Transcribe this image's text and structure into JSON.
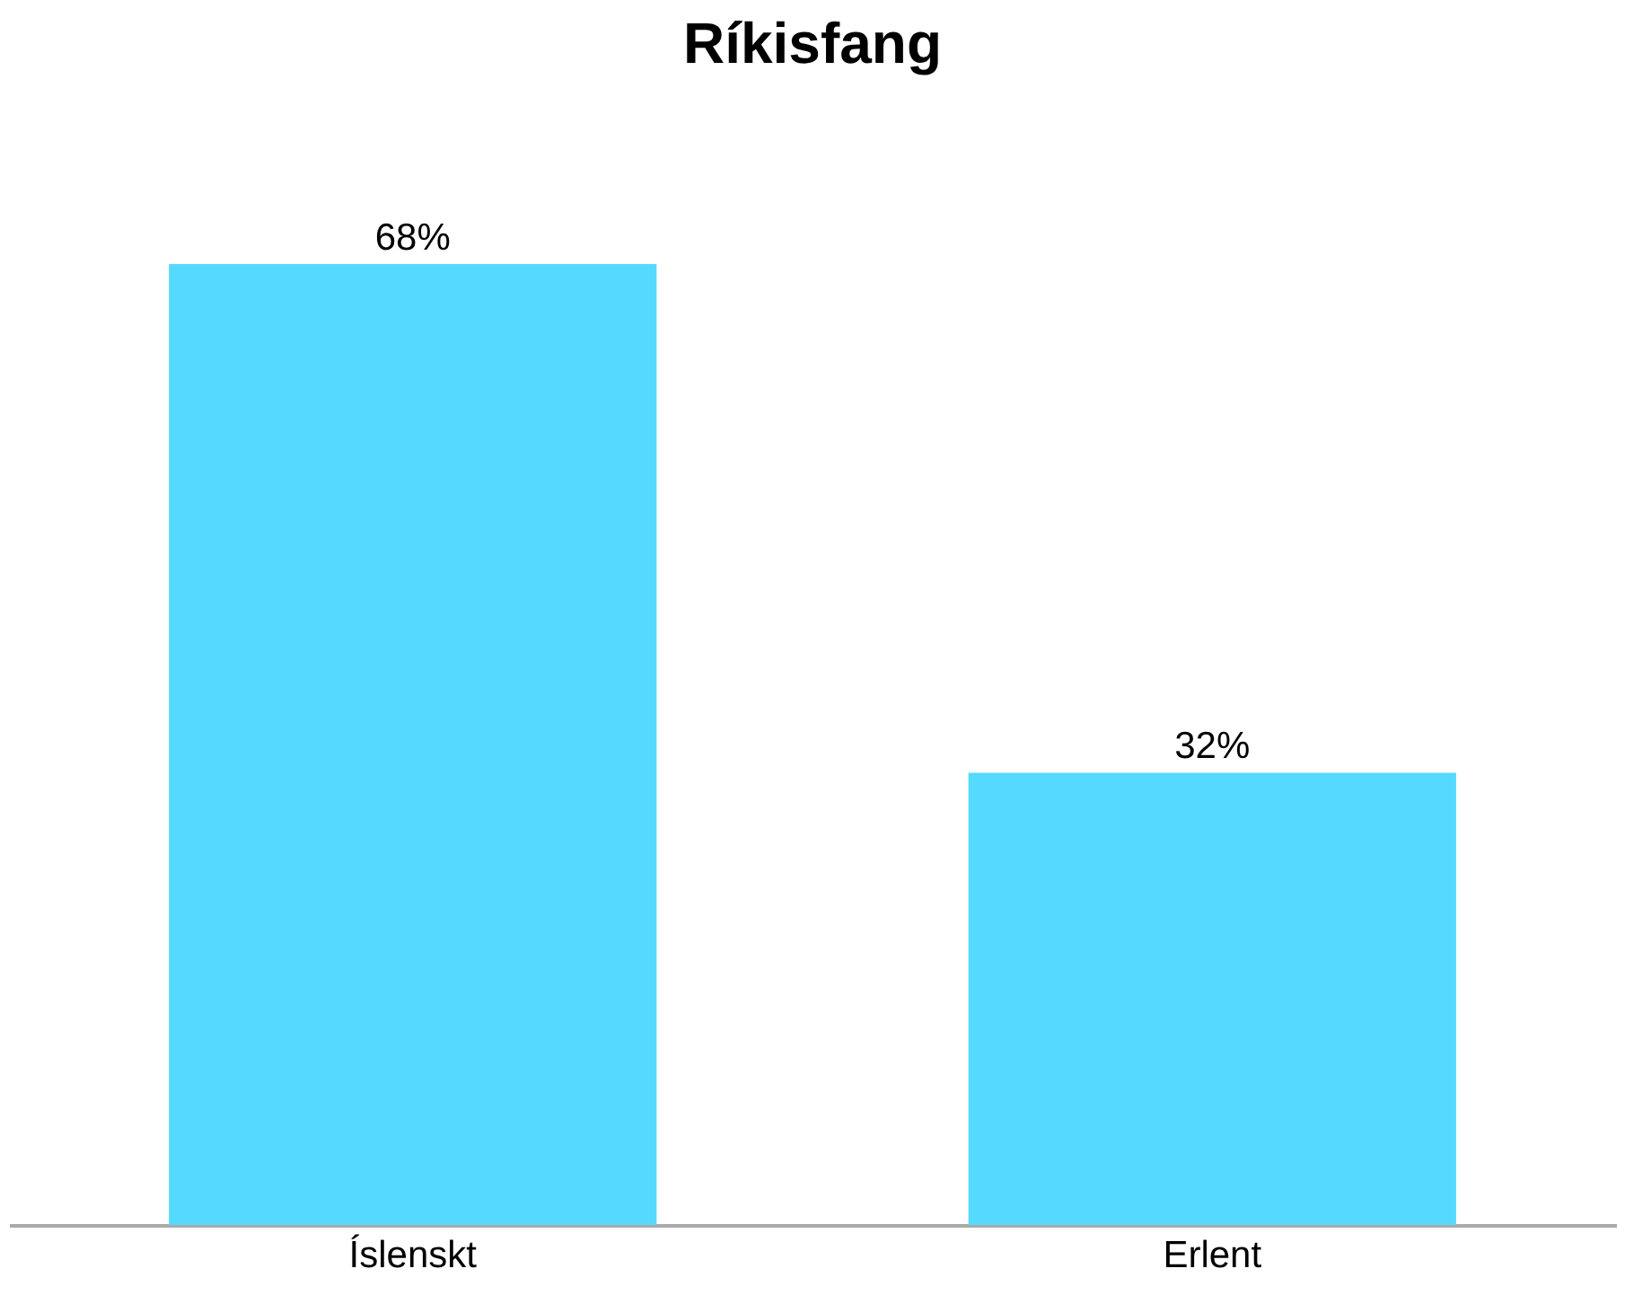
{
  "chart_data": {
    "type": "bar",
    "title": "Ríkisfang",
    "categories": [
      "Íslenskt",
      "Erlent"
    ],
    "values": [
      68,
      32
    ],
    "value_labels": [
      "68%",
      "32%"
    ],
    "color": "#55d9ff"
  }
}
